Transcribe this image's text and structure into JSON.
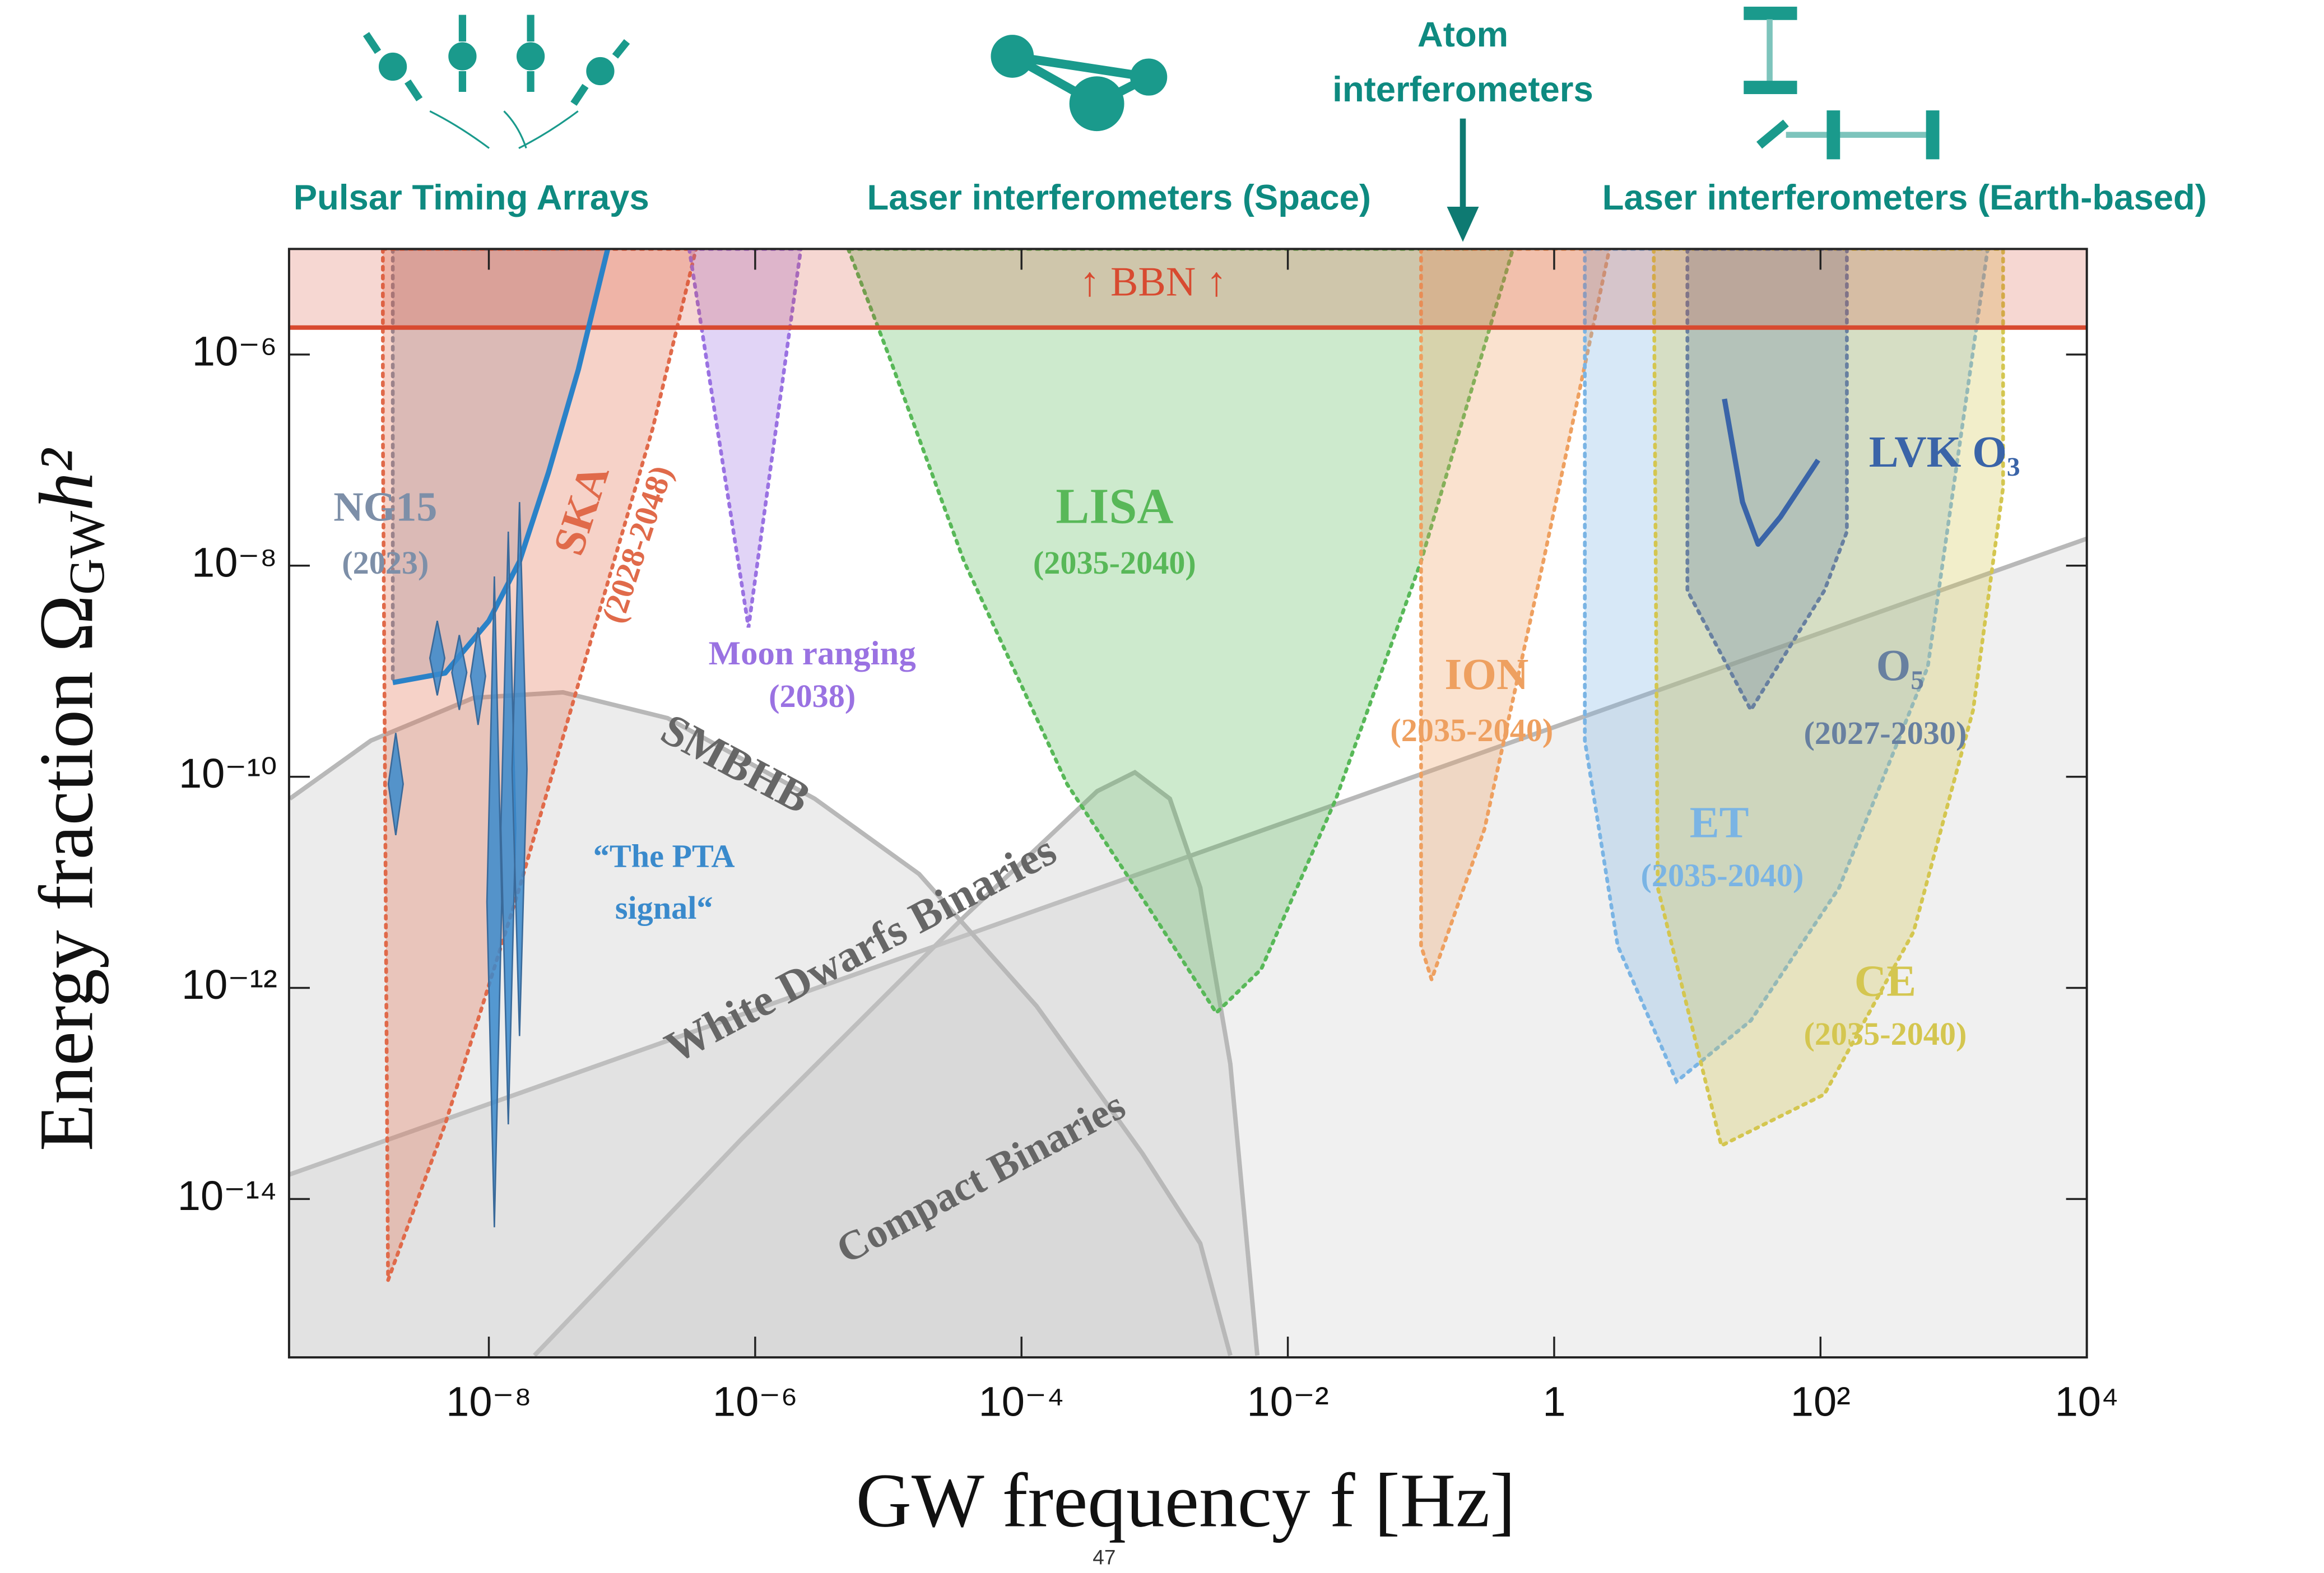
{
  "header": {
    "pta": "Pulsar Timing Arrays",
    "space": "Laser interferometers (Space)",
    "atom": [
      "Atom",
      "interferometers"
    ],
    "earth": "Laser interferometers (Earth-based)"
  },
  "page_number": "47",
  "chart_data": {
    "type": "area",
    "xlabel": "GW frequency f [Hz]",
    "ylabel": {
      "main": "Energy fraction Ω",
      "sub": "GW",
      "tail": "h²"
    },
    "log_x": true,
    "log_y": true,
    "xlim": [
      3.16e-10,
      10000
    ],
    "ylim": [
      3.16e-16,
      1e-05
    ],
    "xticks": [
      {
        "value": 1e-08,
        "label": "10⁻⁸"
      },
      {
        "value": 1e-06,
        "label": "10⁻⁶"
      },
      {
        "value": 0.0001,
        "label": "10⁻⁴"
      },
      {
        "value": 0.01,
        "label": "10⁻²"
      },
      1,
      {
        "value": 100,
        "label": "10²"
      },
      {
        "value": 10000,
        "label": "10⁴"
      }
    ],
    "yticks": [
      {
        "value": 1e-06,
        "label": "10⁻⁶"
      },
      {
        "value": 1e-08,
        "label": "10⁻⁸"
      },
      {
        "value": 1e-10,
        "label": "10⁻¹⁰"
      },
      {
        "value": 1e-12,
        "label": "10⁻¹²"
      },
      {
        "value": 1e-14,
        "label": "10⁻¹⁴"
      }
    ],
    "backgrounds": [
      {
        "label": "Compact Binaries",
        "x": [
          3.16e-10,
          10000
        ],
        "y": [
          1.7e-14,
          1.8e-08
        ]
      },
      {
        "label": "White Dwarfs Binaries",
        "x": [
          2.2e-08,
          7.9e-07,
          3.7e-05,
          0.00037,
          0.00071,
          0.0013,
          0.0022,
          0.0037,
          0.0059
        ],
        "y": [
          3.3e-16,
          3.7e-14,
          4.7e-12,
          7.3e-11,
          1.1e-10,
          6.2e-11,
          8.9e-12,
          1.9e-13,
          3.3e-16
        ]
      },
      {
        "label": "SMBHB",
        "x": [
          3.2e-10,
          1.3e-09,
          7.7e-09,
          3.6e-08,
          2.2e-07,
          2.8e-06,
          1.7e-05,
          0.00013,
          0.00081,
          0.0022,
          0.0037
        ],
        "y": [
          6.2e-11,
          2.2e-10,
          5.6e-10,
          6.3e-10,
          3.6e-10,
          6.2e-11,
          1.2e-11,
          6.7e-13,
          2.7e-14,
          3.8e-15,
          3.3e-16
        ]
      }
    ],
    "regions": [
      {
        "label": [
          "NG15",
          "(2023)"
        ],
        "color": "#7d8fa8",
        "x": [
          1.9e-09,
          1.9e-09,
          4.7e-09,
          1e-08,
          1.7e-08,
          2.8e-08,
          4.7e-08,
          7.8e-08
        ],
        "y": [
          1e-05,
          7.8e-10,
          9.6e-10,
          3e-09,
          1.1e-08,
          7.6e-08,
          7.2e-07,
          1e-05
        ]
      },
      {
        "label": [
          "SKA",
          "(2028-2048)"
        ],
        "color": "#e06a4a",
        "x": [
          1.6e-09,
          1.6e-09,
          1.75e-09,
          4.7e-09,
          1.7e-08,
          6e-08,
          1.7e-07,
          3.6e-07
        ],
        "y": [
          1e-05,
          2e-07,
          1.7e-15,
          5.1e-14,
          8.9e-12,
          2.2e-09,
          2e-07,
          1e-05
        ]
      },
      {
        "label": [
          "Moon ranging",
          "(2038)"
        ],
        "color": "#9a72e2",
        "x": [
          3.2e-07,
          8.9e-07,
          2.2e-06
        ],
        "y": [
          1e-05,
          2.6e-09,
          1e-05
        ]
      },
      {
        "label": [
          "LISA",
          "(2035-2040)"
        ],
        "color": "#58b858",
        "x": [
          5e-06,
          1e-05,
          3.7e-05,
          0.00022,
          0.001,
          0.0029,
          0.0063,
          0.023,
          0.1,
          0.49
        ],
        "y": [
          1e-05,
          1e-06,
          1.1e-08,
          8.5e-11,
          4.7e-12,
          5.8e-13,
          1.5e-12,
          6.2e-11,
          1.1e-08,
          1e-05
        ]
      },
      {
        "label": [
          "ION",
          "(2035-2040)"
        ],
        "color": "#eea060",
        "x": [
          0.1,
          0.1,
          0.12,
          0.3,
          0.83,
          2.6
        ],
        "y": [
          1e-05,
          2.5e-12,
          1.2e-12,
          3.2e-11,
          1.1e-08,
          1e-05
        ]
      },
      {
        "label": [
          "ET",
          "(2035-2040)"
        ],
        "color": "#7ab4e4",
        "x": [
          1.7,
          1.7,
          3,
          8.3,
          30,
          138,
          640,
          1800
        ],
        "y": [
          1e-05,
          2.2e-10,
          2.5e-12,
          1.3e-13,
          4.9e-13,
          8.9e-12,
          1.1e-09,
          1e-05
        ]
      },
      {
        "label": [
          "CE",
          "(2035-2040)"
        ],
        "color": "#d4c650",
        "x": [
          5.6,
          6,
          18,
          107,
          500,
          1400,
          2350,
          2350
        ],
        "y": [
          1e-05,
          8.9e-12,
          3.2e-14,
          9.8e-14,
          3.4e-12,
          4.3e-10,
          5.5e-08,
          1e-05
        ]
      },
      {
        "label": [
          "O₅",
          "(2027-2030)"
        ],
        "color": "#6880a0",
        "x": [
          10,
          10,
          30,
          107,
          158,
          158
        ],
        "y": [
          1e-05,
          5.8e-09,
          4.3e-10,
          5.8e-09,
          2.1e-08,
          1e-05
        ]
      }
    ],
    "bbn": {
      "label": "↑ BBN ↑",
      "value": 1.8e-06,
      "color": "#d84a30"
    },
    "lines": [
      {
        "color": "#2a82c8",
        "x": [
          1.9e-09,
          4.7e-09,
          1e-08,
          1.7e-08,
          2.8e-08,
          4.7e-08,
          7.8e-08
        ],
        "y": [
          7.8e-10,
          9.6e-10,
          3e-09,
          1.1e-08,
          7.6e-08,
          7.2e-07,
          1e-05
        ]
      },
      {
        "label": "LVK O₃",
        "color": "#3a64a8",
        "x": [
          19,
          26,
          34,
          50,
          96
        ],
        "y": [
          3.8e-07,
          4e-08,
          1.6e-08,
          2.9e-08,
          1e-07
        ]
      }
    ],
    "pta_signal": {
      "label": [
        "“The PTA",
        "signal“"
      ],
      "color": "#3a8acc",
      "x": [
        2e-09,
        4.1e-09,
        6e-09,
        8.3e-09,
        1.1e-08,
        1.4e-08,
        1.7e-08
      ],
      "low": [
        2.8e-11,
        5.9e-10,
        4.3e-10,
        3.1e-10,
        5.4e-15,
        5.1e-14,
        3.5e-13
      ],
      "high": [
        2.6e-10,
        3e-09,
        2.2e-09,
        2.6e-09,
        7.9e-09,
        2.1e-08,
        4e-08
      ]
    }
  }
}
